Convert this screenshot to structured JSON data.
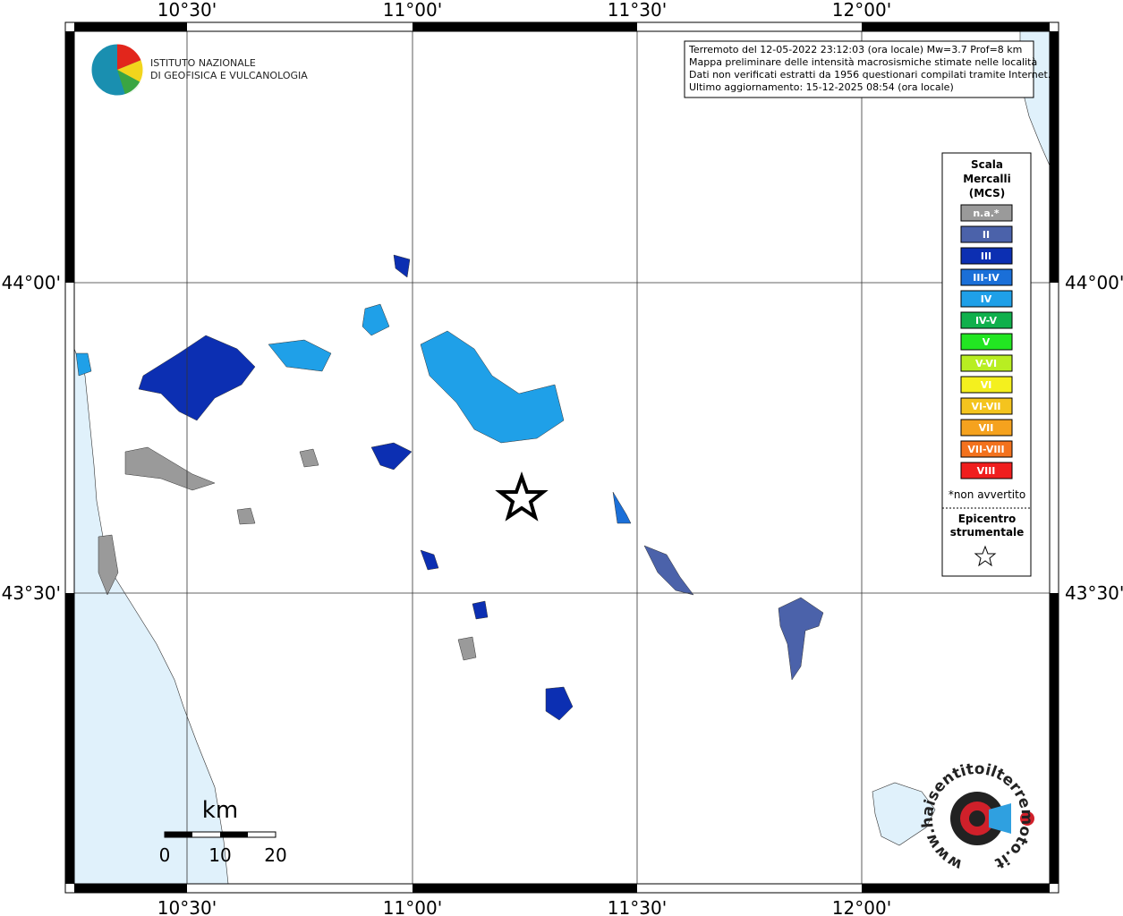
{
  "map": {
    "x_labels": [
      "10°30'",
      "11°00'",
      "11°30'",
      "12°00'"
    ],
    "y_labels": [
      "44°00'",
      "43°30'"
    ]
  },
  "logo": {
    "line1": "ISTITUTO NAZIONALE",
    "line2": "DI GEOFISICA E VULCANOLOGIA"
  },
  "info_box": {
    "lines": [
      "Terremoto del 12-05-2022 23:12:03 (ora locale) Mw=3.7 Prof=8 km",
      "Mappa preliminare delle intensità macrosismiche stimate nelle località",
      "Dati non verificati estratti da 1956 questionari compilati tramite Internet.",
      "Ultimo aggiornamento: 15-12-2025 08:54 (ora locale)"
    ]
  },
  "legend": {
    "title": [
      "Scala",
      "Mercalli",
      "(MCS)"
    ],
    "items": [
      {
        "label": "n.a.*",
        "color": "#9a9a9a"
      },
      {
        "label": "II",
        "color": "#4b62aa"
      },
      {
        "label": "III",
        "color": "#0c2fb2"
      },
      {
        "label": "III-IV",
        "color": "#1a6fd8"
      },
      {
        "label": "IV",
        "color": "#1fa0e8"
      },
      {
        "label": "IV-V",
        "color": "#10b04c"
      },
      {
        "label": "V",
        "color": "#22e622"
      },
      {
        "label": "V-VI",
        "color": "#b8ee22"
      },
      {
        "label": "VI",
        "color": "#f4f01e"
      },
      {
        "label": "VI-VII",
        "color": "#f4c41e"
      },
      {
        "label": "VII",
        "color": "#f5a21e"
      },
      {
        "label": "VII-VIII",
        "color": "#f3721e"
      },
      {
        "label": "VIII",
        "color": "#f01e1e"
      }
    ],
    "footnote": "*non avvertito",
    "epicenter_label": [
      "Epicentro",
      "strumentale"
    ]
  },
  "scale_bar": {
    "unit": "km",
    "labels": [
      "0",
      "10",
      "20"
    ]
  },
  "site_logo": {
    "text": "www.haisentitoilterremoto.it"
  }
}
